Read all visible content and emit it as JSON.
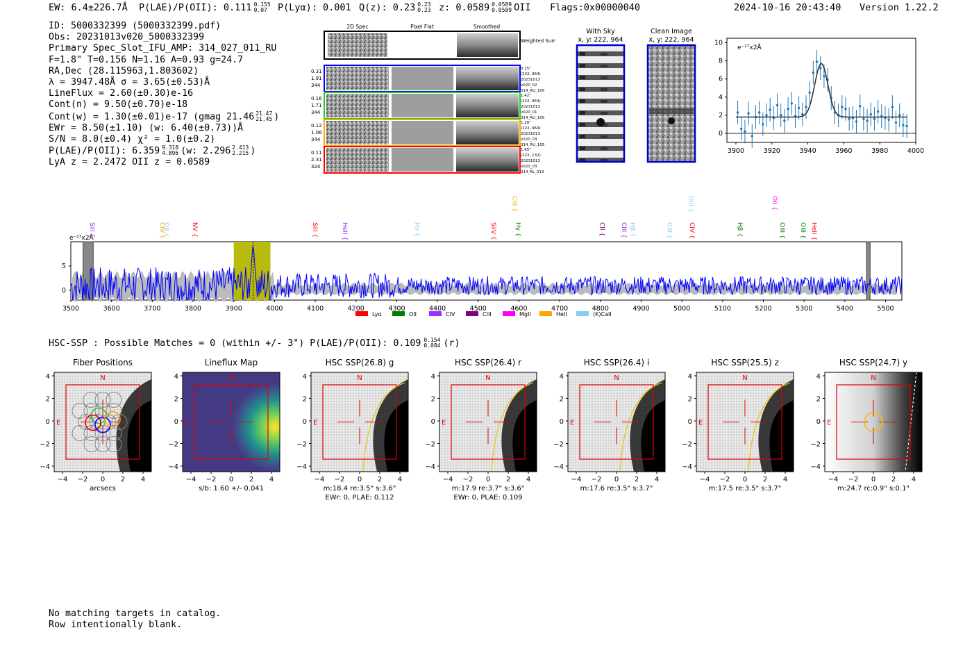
{
  "header": {
    "ew": "EW: 6.4±226.7Å",
    "plae_label": "P(LAE)/P(OII): 0.111",
    "plae_sup": "0.155",
    "plae_sub": "0.07",
    "plya": "P(Lyα): 0.001",
    "qz_label": "Q(z): 0.23",
    "qz_sup": "0.23",
    "qz_sub": "0.23",
    "z_label": "z: 0.0589",
    "z_sup": "0.0589",
    "z_sub": "0.0589",
    "z_line": "OII",
    "flags": "Flags:0x00000040",
    "datetime": "2024-10-16 20:43:40",
    "version": "Version 1.22.2"
  },
  "info": {
    "id": "ID: 5000332399 (5000332399.pdf)",
    "obs": "Obs: 20231013v020_5000332399",
    "primary": "Primary Spec_Slot_IFU_AMP: 314_027_011_RU",
    "params": "F=1.8\"  T=0.156  N=1.16  A=0.93  g=24.7",
    "radec": "RA,Dec (28.115963,1.803602)",
    "lambda": "λ = 3947.48Å  σ = 3.65(±0.53)Å",
    "lineflux": "LineFlux = 2.60(±0.30)e-16",
    "contn": "Cont(n) = 9.50(±0.70)e-18",
    "contw": "Cont(w) = 1.30(±0.01)e-17 (gmag 21.46",
    "contw_sup": "21.47",
    "contw_sub": "21.45",
    "contw_end": ")",
    "ewr": "EWr = 8.50(±1.10) (w: 6.40(±0.73))Å",
    "sn": "S/N = 8.0(±0.4)  χ² = 1.0(±0.2)",
    "plae": "P(LAE)/P(OII): 6.359",
    "plae_sup": "9.318",
    "plae_sub": "4.896",
    "plae_w": "(w: 2.296",
    "plae_w_sup": "2.413",
    "plae_w_sub": "2.215",
    "plae_w_end": ")",
    "lya": "LyA z = 2.2472  OII z = 0.0589"
  },
  "cutouts": {
    "col_headers": [
      "2D Spec",
      "Pixel Flat",
      "Smoothed"
    ],
    "weighted_sum": "Weighted Sum",
    "rows": [
      {
        "left": [
          "0.31",
          "1.91",
          "344"
        ],
        "right": [
          "0.15\"",
          "(222, 964)",
          "20231013",
          "v020_02",
          "314_RU_105"
        ],
        "color": "#0000ff"
      },
      {
        "left": [
          "0.16",
          "1.71",
          "344"
        ],
        "right": [
          "1.42\"",
          "(222, 964)",
          "20231013",
          "v020_01",
          "314_RU_105"
        ],
        "color": "#22cc22"
      },
      {
        "left": [
          "0.12",
          "1.06",
          "344"
        ],
        "right": [
          "1.28\"",
          "(222, 964)",
          "20231013",
          "v020_03",
          "314_RU_105"
        ],
        "color": "#ffa500"
      },
      {
        "left": [
          "0.11",
          "2.31",
          "324"
        ],
        "right": [
          "1.65\"",
          "(222, 132)",
          "20231013",
          "v020_03",
          "314_RL_013"
        ],
        "color": "#ff0000"
      }
    ]
  },
  "images": {
    "with_sky": "With Sky",
    "with_sky_xy": "x, y: 222, 964",
    "clean": "Clean Image",
    "clean_xy": "x, y: 222, 964"
  },
  "colors": {
    "spectrum": "#0000ff",
    "fit": "#333333",
    "data_points": "#1f77b4",
    "window": "#b5b800",
    "error_band": "#bbbbbb"
  },
  "chart_data": [
    {
      "type": "scatter",
      "title": "Line fit",
      "unit_label": "e⁻¹⁷x2Å",
      "xlim": [
        3895,
        4000
      ],
      "ylim": [
        -1,
        10.5
      ],
      "xticks": [
        3900,
        3920,
        3940,
        3960,
        3980,
        4000
      ],
      "yticks": [
        0,
        2,
        4,
        6,
        8,
        10
      ],
      "fit": {
        "center": 3947.48,
        "sigma": 3.65,
        "continuum": 1.8,
        "amplitude": 5.9
      },
      "x": [
        3901,
        3903,
        3905,
        3907,
        3909,
        3911,
        3913,
        3915,
        3917,
        3919,
        3921,
        3923,
        3925,
        3927,
        3929,
        3931,
        3933,
        3935,
        3937,
        3939,
        3941,
        3943,
        3945,
        3947,
        3949,
        3951,
        3953,
        3955,
        3957,
        3959,
        3961,
        3963,
        3965,
        3967,
        3969,
        3971,
        3973,
        3975,
        3977,
        3979,
        3981,
        3983,
        3985,
        3987,
        3989,
        3991,
        3993,
        3995
      ],
      "y": [
        2.3,
        0.5,
        0.2,
        2.2,
        -0.3,
        1.8,
        2.3,
        1.0,
        2.0,
        2.6,
        1.7,
        3.1,
        2.0,
        1.4,
        2.7,
        3.3,
        1.9,
        2.8,
        2.1,
        2.9,
        4.5,
        6.7,
        7.9,
        7.2,
        6.3,
        5.9,
        3.9,
        2.3,
        2.0,
        2.9,
        2.7,
        1.6,
        1.7,
        1.3,
        3.0,
        1.6,
        1.4,
        2.1,
        1.6,
        2.4,
        1.9,
        1.7,
        1.5,
        2.9,
        1.2,
        2.0,
        0.9,
        0.8
      ],
      "err": [
        1.3,
        1.3,
        1.3,
        1.3,
        1.3,
        1.3,
        1.3,
        1.3,
        1.3,
        1.3,
        1.3,
        1.3,
        1.3,
        1.3,
        1.3,
        1.3,
        1.3,
        1.3,
        1.3,
        1.3,
        1.3,
        1.3,
        1.3,
        1.3,
        1.3,
        1.3,
        1.3,
        1.3,
        1.3,
        1.3,
        1.3,
        1.3,
        1.3,
        1.3,
        1.3,
        1.3,
        1.3,
        1.3,
        1.3,
        1.3,
        1.3,
        1.3,
        1.3,
        1.3,
        1.3,
        1.3,
        1.3,
        1.3
      ]
    },
    {
      "type": "line",
      "title": "Full spectrum",
      "unit_label": "e⁻¹⁷x2Å",
      "xlim": [
        3500,
        5540
      ],
      "ylim": [
        -2,
        10
      ],
      "xticks": [
        3500,
        3600,
        3700,
        3800,
        3900,
        4000,
        4100,
        4200,
        4300,
        4400,
        4500,
        4600,
        4700,
        4800,
        4900,
        5000,
        5100,
        5200,
        5300,
        5400,
        5500
      ],
      "yticks": [
        0,
        5
      ],
      "highlight_window": [
        3900,
        3990
      ],
      "peak": 3947.48,
      "masked": [
        3530,
        3555
      ],
      "masked2": [
        5453,
        5462
      ],
      "lines": [
        {
          "name": "SiII",
          "wave": 3553,
          "color": "#9b30ff",
          "row": 1
        },
        {
          "name": "CIV",
          "wave": 3725,
          "color": "#ffa500",
          "row": 1
        },
        {
          "name": "OII",
          "wave": 3735,
          "color": "#87ceeb",
          "row": 1
        },
        {
          "name": "NV",
          "wave": 3805,
          "color": "#ff0000",
          "row": 1
        },
        {
          "name": "SiII",
          "wave": 4100,
          "color": "#ff0000",
          "row": 1
        },
        {
          "name": "HeII",
          "wave": 4173,
          "color": "#9b30ff",
          "row": 1
        },
        {
          "name": "Hγ",
          "wave": 4350,
          "color": "#87ceeb",
          "row": 1
        },
        {
          "name": "SiIV",
          "wave": 4538,
          "color": "#ff0000",
          "row": 1
        },
        {
          "name": "CIII",
          "wave": 4590,
          "color": "#ffa500",
          "row": 0
        },
        {
          "name": "Hγ",
          "wave": 4598,
          "color": "#008000",
          "row": 1
        },
        {
          "name": "CII",
          "wave": 4805,
          "color": "#800080",
          "row": 1
        },
        {
          "name": "CIII",
          "wave": 4858,
          "color": "#9b30ff",
          "row": 1
        },
        {
          "name": "Hβ",
          "wave": 4880,
          "color": "#87ceeb",
          "row": 1
        },
        {
          "name": "OIII",
          "wave": 4970,
          "color": "#87ceeb",
          "row": 1
        },
        {
          "name": "OIII",
          "wave": 5023,
          "color": "#87ceeb",
          "row": 0
        },
        {
          "name": "CIV",
          "wave": 5025,
          "color": "#ff0000",
          "row": 1
        },
        {
          "name": "Hβ",
          "wave": 5143,
          "color": "#008000",
          "row": 1
        },
        {
          "name": "OII",
          "wave": 5228,
          "color": "#ff00ff",
          "row": 0
        },
        {
          "name": "OIII",
          "wave": 5247,
          "color": "#008000",
          "row": 1
        },
        {
          "name": "OIII",
          "wave": 5298,
          "color": "#008000",
          "row": 1
        },
        {
          "name": "HeII",
          "wave": 5325,
          "color": "#ff0000",
          "row": 1
        }
      ],
      "legend": [
        {
          "label": "Lyα",
          "color": "#ff0000"
        },
        {
          "label": "OII",
          "color": "#008000"
        },
        {
          "label": "CIV",
          "color": "#9b30ff"
        },
        {
          "label": "CIII",
          "color": "#800080"
        },
        {
          "label": "MgII",
          "color": "#ff00ff"
        },
        {
          "label": "HeII",
          "color": "#ffa500"
        },
        {
          "label": "(K)CaII",
          "color": "#87ceeb"
        }
      ]
    }
  ],
  "hsc": {
    "summary": "HSC-SSP : Possible Matches = 0 (within +/- 3\")  P(LAE)/P(OII): 0.109",
    "sup": "0.154",
    "sub": "0.084",
    "band": "(r)",
    "ticks": [
      "−4",
      "−2",
      "0",
      "2",
      "4"
    ],
    "north": "N",
    "east": "E",
    "panels": [
      {
        "title": "Fiber Positions",
        "cap1": "arcsecs",
        "cap2": ""
      },
      {
        "title": "Lineflux Map",
        "cap1": "s/b: 1.60 +/- 0.041",
        "cap2": ""
      },
      {
        "title": "HSC SSP(26.8) g",
        "cap1": "m:18.4  re:3.5\"  s:3.6\"",
        "cap2": "EWr: 0, PLAE: 0.112"
      },
      {
        "title": "HSC SSP(26.4) r",
        "cap1": "m:17.9  re:3.7\"  s:3.6\"",
        "cap2": "EWr: 0, PLAE: 0.109"
      },
      {
        "title": "HSC SSP(26.4) i",
        "cap1": "m:17.6  re:3.5\"  s:3.7\"",
        "cap2": ""
      },
      {
        "title": "HSC SSP(25.5) z",
        "cap1": "m:17.5  re:3.5\"  s:3.7\"",
        "cap2": ""
      },
      {
        "title": "HSC SSP(24.7) y",
        "cap1": "m:24.7  rc:0.9\"  s:0.1\"",
        "cap2": ""
      }
    ]
  },
  "footer": {
    "line1": "No matching targets in catalog.",
    "line2": "Row intentionally blank."
  }
}
